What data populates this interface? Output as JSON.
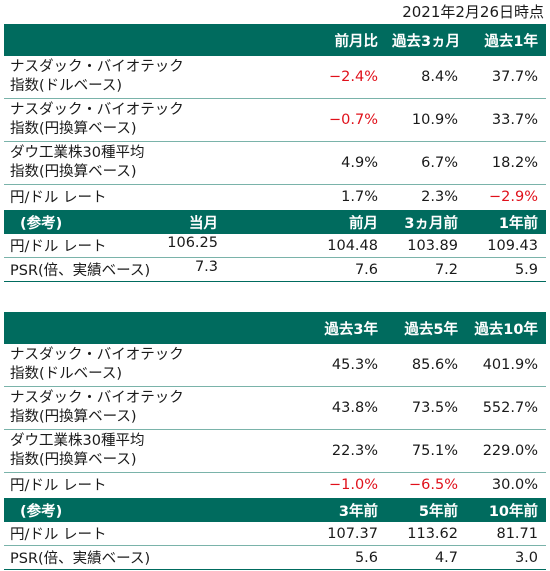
{
  "as_of": "2021年2月26日時点",
  "colors": {
    "header_bg": "#006b5e",
    "negative": "#e0111b"
  },
  "table1": {
    "headers": [
      "",
      "前月比",
      "過去3ヵ月",
      "過去1年"
    ],
    "rows": [
      {
        "label": [
          "ナスダック・バイオテック",
          "指数(ドルベース)"
        ],
        "values": [
          "−2.4%",
          "8.4%",
          "37.7%"
        ],
        "negative": [
          true,
          false,
          false
        ]
      },
      {
        "label": [
          "ナスダック・バイオテック",
          "指数(円換算ベース)"
        ],
        "values": [
          "−0.7%",
          "10.9%",
          "33.7%"
        ],
        "negative": [
          true,
          false,
          false
        ]
      },
      {
        "label": [
          "ダウ工業株30種平均",
          "指数(円換算ベース)"
        ],
        "values": [
          "4.9%",
          "6.7%",
          "18.2%"
        ],
        "negative": [
          false,
          false,
          false
        ]
      },
      {
        "label": [
          "円/ドル レート"
        ],
        "values": [
          "1.7%",
          "2.3%",
          "−2.9%"
        ],
        "negative": [
          false,
          false,
          true
        ]
      }
    ],
    "ref_headers": [
      "(参考)",
      "当月",
      "前月",
      "3ヵ月前",
      "1年前"
    ],
    "ref_rows": [
      {
        "label": "円/ドル レート",
        "values": [
          "106.25",
          "104.48",
          "103.89",
          "109.43"
        ]
      },
      {
        "label": "PSR(倍、実績ベース)",
        "values": [
          "7.3",
          "7.6",
          "7.2",
          "5.9"
        ]
      }
    ]
  },
  "table2": {
    "headers": [
      "",
      "過去3年",
      "過去5年",
      "過去10年"
    ],
    "rows": [
      {
        "label": [
          "ナスダック・バイオテック",
          "指数(ドルベース)"
        ],
        "values": [
          "45.3%",
          "85.6%",
          "401.9%"
        ],
        "negative": [
          false,
          false,
          false
        ]
      },
      {
        "label": [
          "ナスダック・バイオテック",
          "指数(円換算ベース)"
        ],
        "values": [
          "43.8%",
          "73.5%",
          "552.7%"
        ],
        "negative": [
          false,
          false,
          false
        ]
      },
      {
        "label": [
          "ダウ工業株30種平均",
          "指数(円換算ベース)"
        ],
        "values": [
          "22.3%",
          "75.1%",
          "229.0%"
        ],
        "negative": [
          false,
          false,
          false
        ]
      },
      {
        "label": [
          "円/ドル レート"
        ],
        "values": [
          "−1.0%",
          "−6.5%",
          "30.0%"
        ],
        "negative": [
          true,
          true,
          false
        ]
      }
    ],
    "ref_headers": [
      "(参考)",
      "3年前",
      "5年前",
      "10年前"
    ],
    "ref_rows": [
      {
        "label": "円/ドル レート",
        "values": [
          "107.37",
          "113.62",
          "81.71"
        ]
      },
      {
        "label": "PSR(倍、実績ベース)",
        "values": [
          "5.6",
          "4.7",
          "3.0"
        ]
      }
    ]
  }
}
